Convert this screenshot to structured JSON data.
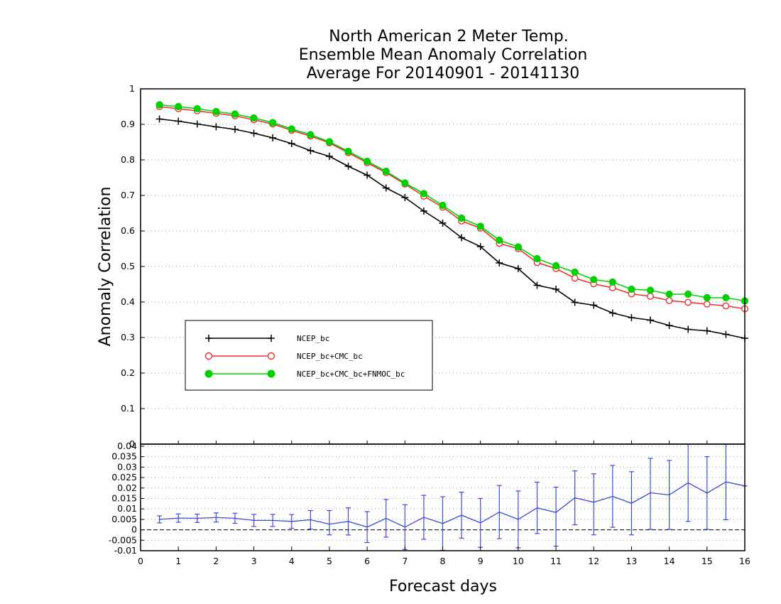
{
  "chart_data": {
    "type": "line",
    "title": [
      "North American 2 Meter Temp.",
      "Ensemble Mean Anomaly Correlation",
      "Average For 20140901 - 20141130"
    ],
    "xlabel": "Forecast days",
    "ylabel": "Anomaly Correlation",
    "xlim": [
      0,
      16
    ],
    "xticks": [
      "0",
      "1",
      "2",
      "3",
      "4",
      "5",
      "6",
      "7",
      "8",
      "9",
      "10",
      "11",
      "12",
      "13",
      "14",
      "15",
      "16"
    ],
    "grid": true,
    "legend_placement": "lower-left",
    "x": [
      0.5,
      1,
      1.5,
      2,
      2.5,
      3,
      3.5,
      4,
      4.5,
      5,
      5.5,
      6,
      6.5,
      7,
      7.5,
      8,
      8.5,
      9,
      9.5,
      10,
      10.5,
      11,
      11.5,
      12,
      12.5,
      13,
      13.5,
      14,
      14.5,
      15,
      15.5,
      16
    ],
    "main_panel": {
      "ylim": [
        0,
        1
      ],
      "yticks": [
        "0",
        "0.1",
        "0.2",
        "0.3",
        "0.4",
        "0.5",
        "0.6",
        "0.7",
        "0.8",
        "0.9",
        "1"
      ],
      "series": [
        {
          "name": "NCEP_bc",
          "color": "#000000",
          "marker": "plus",
          "values": [
            0.915,
            0.909,
            0.901,
            0.893,
            0.886,
            0.875,
            0.862,
            0.846,
            0.826,
            0.81,
            0.782,
            0.757,
            0.721,
            0.694,
            0.656,
            0.622,
            0.581,
            0.556,
            0.51,
            0.494,
            0.447,
            0.436,
            0.399,
            0.391,
            0.369,
            0.356,
            0.349,
            0.334,
            0.323,
            0.319,
            0.309,
            0.298
          ]
        },
        {
          "name": "NCEP_bc+CMC_bc",
          "color": "#e8312f",
          "marker": "open-circle",
          "values": [
            0.95,
            0.944,
            0.938,
            0.931,
            0.924,
            0.913,
            0.901,
            0.883,
            0.867,
            0.848,
            0.82,
            0.792,
            0.764,
            0.732,
            0.698,
            0.667,
            0.628,
            0.608,
            0.565,
            0.55,
            0.511,
            0.494,
            0.467,
            0.451,
            0.44,
            0.423,
            0.416,
            0.404,
            0.399,
            0.394,
            0.389,
            0.381
          ]
        },
        {
          "name": "NCEP_bc+CMC_bc+FNMOC_bc",
          "color": "#00d100",
          "marker": "filled-circle",
          "values": [
            0.955,
            0.95,
            0.944,
            0.936,
            0.929,
            0.918,
            0.905,
            0.887,
            0.871,
            0.851,
            0.824,
            0.796,
            0.768,
            0.735,
            0.705,
            0.672,
            0.636,
            0.613,
            0.574,
            0.555,
            0.522,
            0.502,
            0.484,
            0.463,
            0.456,
            0.436,
            0.433,
            0.422,
            0.422,
            0.412,
            0.412,
            0.403
          ]
        }
      ]
    },
    "diff_panel": {
      "ylim": [
        -0.01,
        0.041
      ],
      "yticks": [
        "-0.01",
        "-0.005",
        "0",
        "0.005",
        "0.01",
        "0.015",
        "0.02",
        "0.025",
        "0.03",
        "0.035",
        "0.04"
      ],
      "color": "#3c4bd6",
      "values": [
        0.005,
        0.0056,
        0.0055,
        0.0059,
        0.0055,
        0.0045,
        0.0045,
        0.004,
        0.0048,
        0.0027,
        0.004,
        0.0013,
        0.0055,
        0.0013,
        0.006,
        0.003,
        0.007,
        0.0033,
        0.0085,
        0.005,
        0.0105,
        0.0083,
        0.0153,
        0.0132,
        0.016,
        0.0127,
        0.0177,
        0.0167,
        0.0225,
        0.0176,
        0.0229,
        0.021
      ],
      "upper": [
        0.0067,
        0.0076,
        0.0075,
        0.0081,
        0.0079,
        0.0074,
        0.0074,
        0.0073,
        0.0092,
        0.0092,
        0.0105,
        0.0087,
        0.0145,
        0.012,
        0.0165,
        0.0158,
        0.018,
        0.015,
        0.0212,
        0.0186,
        0.0228,
        0.0204,
        0.0282,
        0.0268,
        0.0308,
        0.0278,
        0.0342,
        0.0332,
        0.041,
        0.035,
        0.041,
        0.021
      ],
      "lower": [
        0.0033,
        0.0036,
        0.0035,
        0.0037,
        0.0031,
        0.0016,
        0.0016,
        0.0007,
        0.0004,
        -0.0024,
        -0.0025,
        -0.0061,
        -0.0035,
        -0.0094,
        -0.0045,
        -0.0098,
        -0.004,
        -0.0084,
        -0.0042,
        -0.0086,
        -0.0018,
        -0.0078,
        0.0024,
        -0.0024,
        0.0012,
        -0.0024,
        0.0002,
        0.0002,
        0.004,
        0.0002,
        0.0048,
        0.021
      ]
    }
  }
}
